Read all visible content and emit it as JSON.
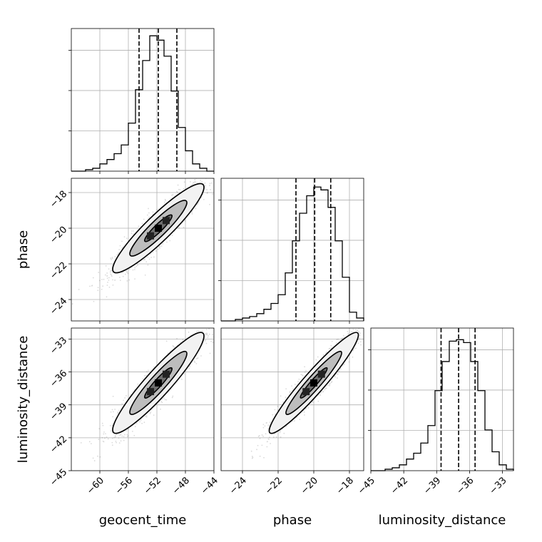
{
  "chart_data": {
    "type": "corner",
    "grid": true,
    "parameters": [
      {
        "name": "geocent_time",
        "range": [
          -64,
          -44
        ],
        "ticks": [
          -60,
          -56,
          -52,
          -48,
          -44
        ],
        "quantiles": [
          -54.5,
          -51.8,
          -49.2
        ]
      },
      {
        "name": "phase",
        "range": [
          -25.2,
          -17.2
        ],
        "ticks": [
          -24,
          -22,
          -20,
          -18
        ],
        "quantiles": [
          -21.0,
          -19.95,
          -19.05
        ]
      },
      {
        "name": "luminosity_distance",
        "range": [
          -45,
          -32
        ],
        "ticks": [
          -45,
          -42,
          -39,
          -36,
          -33
        ],
        "quantiles": [
          -38.6,
          -37.0,
          -35.5
        ]
      }
    ],
    "histograms": [
      {
        "parameter": "geocent_time",
        "bin_edges": [
          -64,
          -63,
          -62,
          -61,
          -60,
          -59,
          -58,
          -57,
          -56,
          -55,
          -54,
          -53,
          -52,
          -51,
          -50,
          -49,
          -48,
          -47,
          -46,
          -45,
          -44
        ],
        "counts": [
          0,
          0,
          0.01,
          0.02,
          0.05,
          0.08,
          0.12,
          0.18,
          0.33,
          0.56,
          0.76,
          0.93,
          0.9,
          0.79,
          0.55,
          0.3,
          0.14,
          0.05,
          0.02,
          0,
          0
        ]
      },
      {
        "parameter": "phase",
        "bin_edges": [
          -25.2,
          -24.8,
          -24.4,
          -24.0,
          -23.6,
          -23.2,
          -22.8,
          -22.4,
          -22.0,
          -21.6,
          -21.2,
          -20.8,
          -20.4,
          -20.0,
          -19.6,
          -19.2,
          -18.8,
          -18.4,
          -18.0,
          -17.6,
          -17.2
        ],
        "counts": [
          0,
          0,
          0.01,
          0.02,
          0.03,
          0.05,
          0.08,
          0.12,
          0.18,
          0.33,
          0.55,
          0.74,
          0.86,
          0.92,
          0.9,
          0.78,
          0.55,
          0.3,
          0.06,
          0.02,
          0
        ]
      },
      {
        "parameter": "luminosity_distance",
        "bin_edges": [
          -45,
          -44.35,
          -43.7,
          -43.05,
          -42.4,
          -41.75,
          -41.1,
          -40.45,
          -39.8,
          -39.15,
          -38.5,
          -37.85,
          -37.2,
          -36.55,
          -35.9,
          -35.25,
          -34.6,
          -33.95,
          -33.3,
          -32.65,
          -32
        ],
        "counts": [
          0,
          0,
          0.01,
          0.02,
          0.04,
          0.08,
          0.12,
          0.19,
          0.31,
          0.55,
          0.75,
          0.89,
          0.9,
          0.88,
          0.75,
          0.55,
          0.28,
          0.13,
          0.04,
          0.01,
          0
        ]
      }
    ],
    "joint_2d": [
      {
        "x": "geocent_time",
        "y": "phase",
        "mean": [
          -51.8,
          -20.0
        ],
        "sd": [
          3.2,
          1.25
        ],
        "corr": 0.92
      },
      {
        "x": "geocent_time",
        "y": "luminosity_distance",
        "mean": [
          -51.8,
          -37.0
        ],
        "sd": [
          3.2,
          2.3
        ],
        "corr": 0.93
      },
      {
        "x": "phase",
        "y": "luminosity_distance",
        "mean": [
          -20.0,
          -37.0
        ],
        "sd": [
          1.25,
          2.3
        ],
        "corr": 0.95
      }
    ]
  }
}
